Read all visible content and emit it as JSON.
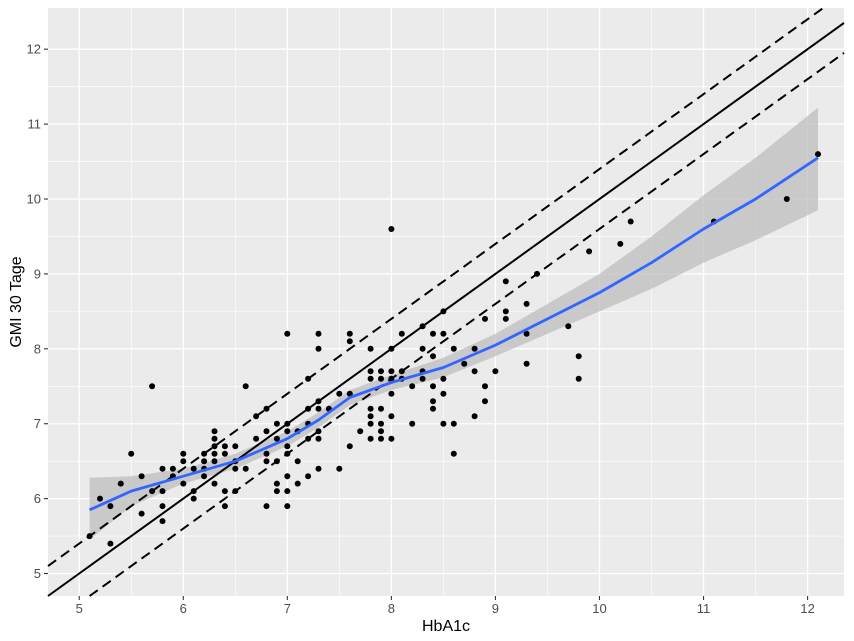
{
  "chart_data": {
    "type": "scatter",
    "xlabel": "HbA1c",
    "ylabel": "GMI 30 Tage",
    "xlim": [
      4.7,
      12.35
    ],
    "ylim": [
      4.7,
      12.55
    ],
    "x_ticks": [
      5,
      6,
      7,
      8,
      9,
      10,
      11,
      12
    ],
    "y_ticks": [
      5,
      6,
      7,
      8,
      9,
      10,
      11,
      12
    ],
    "grid": true,
    "colors": {
      "panel": "#ebebeb",
      "grid": "#ffffff",
      "points": "#000000",
      "smooth": "#3366ff",
      "ribbon": "#bdbdbd",
      "reference": "#000000"
    },
    "reference_lines": [
      {
        "style": "solid",
        "intercept": 0.0,
        "slope": 1
      },
      {
        "style": "dashed",
        "intercept": 0.4,
        "slope": 1
      },
      {
        "style": "dashed",
        "intercept": -0.4,
        "slope": 1
      }
    ],
    "smooth": {
      "x": [
        5.1,
        5.5,
        6.0,
        6.5,
        7.0,
        7.3,
        7.6,
        8.0,
        8.5,
        9.0,
        9.5,
        10.0,
        10.5,
        11.0,
        11.5,
        12.1
      ],
      "y": [
        5.85,
        6.1,
        6.3,
        6.5,
        6.8,
        7.05,
        7.35,
        7.55,
        7.75,
        8.05,
        8.4,
        8.75,
        9.15,
        9.6,
        10.0,
        10.55
      ],
      "lower": [
        5.45,
        5.9,
        6.2,
        6.4,
        6.7,
        6.95,
        7.25,
        7.45,
        7.62,
        7.9,
        8.2,
        8.5,
        8.8,
        9.15,
        9.45,
        9.85
      ],
      "upper": [
        6.28,
        6.3,
        6.4,
        6.6,
        6.9,
        7.15,
        7.45,
        7.65,
        7.88,
        8.2,
        8.6,
        9.0,
        9.5,
        10.05,
        10.55,
        11.22
      ]
    },
    "points": [
      [
        5.1,
        5.5
      ],
      [
        5.2,
        6.0
      ],
      [
        5.3,
        5.9
      ],
      [
        5.3,
        5.4
      ],
      [
        5.4,
        6.2
      ],
      [
        5.5,
        6.6
      ],
      [
        5.6,
        6.3
      ],
      [
        5.6,
        5.8
      ],
      [
        5.7,
        7.5
      ],
      [
        5.7,
        6.1
      ],
      [
        5.8,
        6.4
      ],
      [
        5.8,
        5.9
      ],
      [
        5.8,
        5.7
      ],
      [
        5.8,
        6.1
      ],
      [
        5.9,
        6.3
      ],
      [
        5.9,
        6.4
      ],
      [
        6.0,
        6.6
      ],
      [
        6.0,
        6.5
      ],
      [
        6.0,
        6.2
      ],
      [
        6.1,
        6.1
      ],
      [
        6.1,
        6.4
      ],
      [
        6.1,
        6.0
      ],
      [
        6.2,
        6.6
      ],
      [
        6.2,
        6.4
      ],
      [
        6.2,
        6.5
      ],
      [
        6.2,
        6.3
      ],
      [
        6.3,
        6.9
      ],
      [
        6.3,
        6.8
      ],
      [
        6.3,
        6.7
      ],
      [
        6.3,
        6.6
      ],
      [
        6.3,
        6.5
      ],
      [
        6.3,
        6.2
      ],
      [
        6.4,
        6.7
      ],
      [
        6.4,
        6.6
      ],
      [
        6.4,
        6.1
      ],
      [
        6.4,
        5.9
      ],
      [
        6.5,
        6.7
      ],
      [
        6.5,
        6.5
      ],
      [
        6.5,
        6.4
      ],
      [
        6.5,
        6.1
      ],
      [
        6.6,
        7.5
      ],
      [
        6.6,
        6.4
      ],
      [
        6.7,
        7.1
      ],
      [
        6.7,
        6.8
      ],
      [
        6.8,
        7.2
      ],
      [
        6.8,
        6.9
      ],
      [
        6.8,
        6.6
      ],
      [
        6.8,
        6.5
      ],
      [
        6.8,
        5.9
      ],
      [
        6.9,
        7.0
      ],
      [
        6.9,
        6.8
      ],
      [
        6.9,
        6.5
      ],
      [
        6.9,
        6.2
      ],
      [
        6.9,
        6.1
      ],
      [
        7.0,
        8.2
      ],
      [
        7.0,
        7.0
      ],
      [
        7.0,
        6.9
      ],
      [
        7.0,
        6.7
      ],
      [
        7.0,
        6.6
      ],
      [
        7.0,
        6.3
      ],
      [
        7.0,
        6.1
      ],
      [
        7.0,
        5.9
      ],
      [
        7.1,
        6.9
      ],
      [
        7.1,
        6.5
      ],
      [
        7.1,
        6.2
      ],
      [
        7.2,
        7.6
      ],
      [
        7.2,
        7.2
      ],
      [
        7.2,
        7.0
      ],
      [
        7.2,
        6.8
      ],
      [
        7.2,
        6.3
      ],
      [
        7.3,
        8.2
      ],
      [
        7.3,
        8.0
      ],
      [
        7.3,
        7.3
      ],
      [
        7.3,
        7.2
      ],
      [
        7.3,
        6.9
      ],
      [
        7.3,
        6.8
      ],
      [
        7.3,
        6.4
      ],
      [
        7.4,
        7.2
      ],
      [
        7.5,
        7.4
      ],
      [
        7.5,
        6.4
      ],
      [
        7.6,
        8.2
      ],
      [
        7.6,
        8.1
      ],
      [
        7.6,
        7.4
      ],
      [
        7.6,
        6.7
      ],
      [
        7.7,
        6.9
      ],
      [
        7.8,
        8.0
      ],
      [
        7.8,
        7.7
      ],
      [
        7.8,
        7.6
      ],
      [
        7.8,
        7.2
      ],
      [
        7.8,
        7.1
      ],
      [
        7.8,
        7.0
      ],
      [
        7.8,
        6.8
      ],
      [
        7.9,
        7.7
      ],
      [
        7.9,
        7.6
      ],
      [
        7.9,
        7.2
      ],
      [
        7.9,
        7.0
      ],
      [
        7.9,
        6.9
      ],
      [
        7.9,
        6.8
      ],
      [
        8.0,
        9.6
      ],
      [
        8.0,
        8.0
      ],
      [
        8.0,
        7.7
      ],
      [
        8.0,
        7.6
      ],
      [
        8.0,
        7.4
      ],
      [
        8.0,
        7.1
      ],
      [
        8.0,
        6.8
      ],
      [
        8.1,
        8.2
      ],
      [
        8.1,
        7.7
      ],
      [
        8.1,
        7.6
      ],
      [
        8.2,
        7.5
      ],
      [
        8.2,
        7.0
      ],
      [
        8.3,
        8.3
      ],
      [
        8.3,
        8.0
      ],
      [
        8.3,
        7.7
      ],
      [
        8.3,
        7.6
      ],
      [
        8.4,
        8.2
      ],
      [
        8.4,
        7.9
      ],
      [
        8.4,
        7.5
      ],
      [
        8.4,
        7.3
      ],
      [
        8.4,
        7.2
      ],
      [
        8.5,
        8.5
      ],
      [
        8.5,
        8.2
      ],
      [
        8.5,
        7.6
      ],
      [
        8.5,
        7.4
      ],
      [
        8.5,
        7.0
      ],
      [
        8.6,
        8.0
      ],
      [
        8.6,
        7.0
      ],
      [
        8.6,
        6.6
      ],
      [
        8.7,
        7.8
      ],
      [
        8.8,
        8.0
      ],
      [
        8.8,
        7.7
      ],
      [
        8.8,
        7.1
      ],
      [
        8.9,
        8.4
      ],
      [
        8.9,
        7.5
      ],
      [
        8.9,
        7.3
      ],
      [
        9.0,
        7.7
      ],
      [
        9.1,
        8.9
      ],
      [
        9.1,
        8.5
      ],
      [
        9.1,
        8.4
      ],
      [
        9.3,
        8.6
      ],
      [
        9.3,
        8.2
      ],
      [
        9.3,
        7.8
      ],
      [
        9.4,
        9.0
      ],
      [
        9.7,
        8.3
      ],
      [
        9.8,
        7.9
      ],
      [
        9.8,
        7.6
      ],
      [
        9.9,
        9.3
      ],
      [
        10.2,
        9.4
      ],
      [
        10.3,
        9.7
      ],
      [
        11.1,
        9.7
      ],
      [
        11.8,
        10.0
      ],
      [
        12.1,
        10.6
      ]
    ]
  }
}
